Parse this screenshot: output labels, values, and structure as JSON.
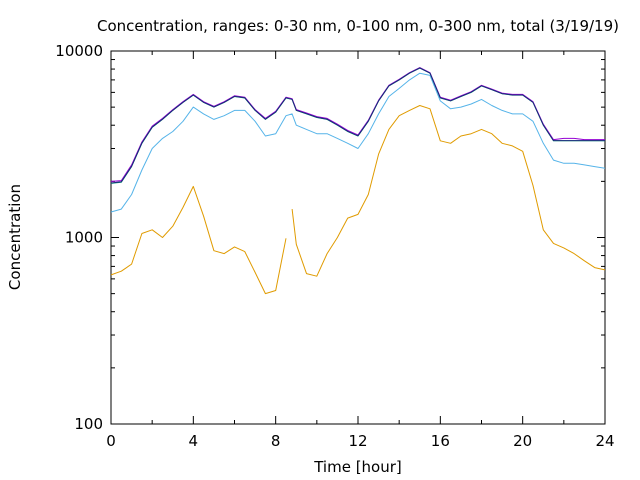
{
  "chart_data": {
    "type": "line",
    "title": "Concentration, ranges: 0-30 nm, 0-100 nm, 0-300 nm, total (3/19/19)",
    "xlabel": "Time [hour]",
    "ylabel": "Concentration",
    "xlim": [
      0,
      24
    ],
    "ylim": [
      100,
      10000
    ],
    "yscale": "log",
    "xticks": [
      0,
      4,
      8,
      12,
      16,
      20,
      24
    ],
    "xtick_labels": [
      "0",
      "4",
      "8",
      "12",
      "16",
      "20",
      "24"
    ],
    "yticks": [
      100,
      1000,
      10000
    ],
    "ytick_labels": [
      "100",
      "1000",
      "10000"
    ],
    "grid": false,
    "series": [
      {
        "color": "#e09b00",
        "gaps_after_x": [
          8.5
        ],
        "x": [
          0,
          0.5,
          1,
          1.5,
          2,
          2.5,
          3,
          3.5,
          4,
          4.5,
          5,
          5.5,
          6,
          6.5,
          7,
          7.5,
          8,
          8.5,
          8.8,
          9,
          9.5,
          10,
          10.5,
          11,
          11.5,
          12,
          12.5,
          13,
          13.5,
          14,
          14.5,
          15,
          15.5,
          16,
          16.5,
          17,
          17.5,
          18,
          18.5,
          19,
          19.5,
          20,
          20.5,
          21,
          21.5,
          22,
          22.5,
          23,
          23.5,
          24
        ],
        "y": [
          630,
          660,
          720,
          1050,
          1100,
          1000,
          1150,
          1450,
          1880,
          1300,
          850,
          820,
          890,
          840,
          650,
          500,
          520,
          990,
          1420,
          920,
          640,
          620,
          820,
          1000,
          1270,
          1330,
          1700,
          2800,
          3800,
          4500,
          4800,
          5100,
          4900,
          3300,
          3200,
          3500,
          3600,
          3800,
          3600,
          3200,
          3100,
          2900,
          1900,
          1100,
          930,
          880,
          820,
          750,
          690,
          670
        ]
      },
      {
        "color": "#56b4e9",
        "gaps_after_x": [],
        "x": [
          0,
          0.5,
          1,
          1.5,
          2,
          2.5,
          3,
          3.5,
          4,
          4.5,
          5,
          5.5,
          6,
          6.5,
          7,
          7.5,
          8,
          8.5,
          8.8,
          9,
          9.5,
          10,
          10.5,
          11,
          11.5,
          12,
          12.5,
          13,
          13.5,
          14,
          14.5,
          15,
          15.5,
          16,
          16.5,
          17,
          17.5,
          18,
          18.5,
          19,
          19.5,
          20,
          20.5,
          21,
          21.5,
          22,
          22.5,
          23,
          23.5,
          24
        ],
        "y": [
          1370,
          1420,
          1700,
          2300,
          3000,
          3400,
          3700,
          4200,
          5000,
          4600,
          4300,
          4500,
          4800,
          4800,
          4200,
          3500,
          3600,
          4500,
          4600,
          4000,
          3800,
          3600,
          3600,
          3400,
          3200,
          3000,
          3600,
          4600,
          5700,
          6300,
          7000,
          7600,
          7400,
          5400,
          4900,
          5000,
          5200,
          5500,
          5100,
          4800,
          4600,
          4600,
          4200,
          3200,
          2600,
          2500,
          2500,
          2450,
          2400,
          2350
        ]
      },
      {
        "color": "#009e73",
        "gaps_after_x": [],
        "x": [
          0,
          0.5,
          1,
          1.5,
          2,
          2.5,
          3,
          3.5,
          4,
          4.5,
          5,
          5.5,
          6,
          6.5,
          7,
          7.5,
          8,
          8.5,
          8.8,
          9,
          9.5,
          10,
          10.5,
          11,
          11.5,
          12,
          12.5,
          13,
          13.5,
          14,
          14.5,
          15,
          15.5,
          16,
          16.5,
          17,
          17.5,
          18,
          18.5,
          19,
          19.5,
          20,
          20.5,
          21,
          21.5,
          22,
          22.5,
          23,
          23.5,
          24
        ],
        "y": [
          1950,
          1980,
          2400,
          3200,
          3900,
          4300,
          4800,
          5300,
          5800,
          5300,
          5000,
          5300,
          5700,
          5600,
          4800,
          4300,
          4700,
          5600,
          5500,
          4800,
          4600,
          4400,
          4300,
          4000,
          3700,
          3500,
          4200,
          5400,
          6500,
          7000,
          7600,
          8100,
          7600,
          5600,
          5400,
          5700,
          6000,
          6500,
          6200,
          5900,
          5800,
          5800,
          5300,
          4000,
          3300,
          3300,
          3300,
          3300,
          3300,
          3300
        ]
      },
      {
        "color": "#9400d3",
        "gaps_after_x": [],
        "x": [
          0,
          0.5,
          1,
          1.5,
          2,
          2.5,
          3,
          3.5,
          4,
          4.5,
          5,
          5.5,
          6,
          6.5,
          7,
          7.5,
          8,
          8.5,
          8.8,
          9,
          9.5,
          10,
          10.5,
          11,
          11.5,
          12,
          12.5,
          13,
          13.5,
          14,
          14.5,
          15,
          15.5,
          16,
          16.5,
          17,
          17.5,
          18,
          18.5,
          19,
          19.5,
          20,
          20.5,
          21,
          21.5,
          22,
          22.5,
          23,
          23.5,
          24
        ],
        "y": [
          2000,
          2020,
          2450,
          3250,
          3950,
          4350,
          4850,
          5350,
          5850,
          5350,
          5050,
          5350,
          5750,
          5650,
          4850,
          4350,
          4750,
          5650,
          5550,
          4850,
          4650,
          4450,
          4350,
          4050,
          3750,
          3550,
          4250,
          5450,
          6550,
          7050,
          7650,
          8150,
          7650,
          5650,
          5450,
          5750,
          6050,
          6550,
          6250,
          5950,
          5850,
          5850,
          5350,
          4050,
          3350,
          3400,
          3400,
          3350,
          3350,
          3350
        ]
      },
      {
        "color": "#1a2a7a",
        "gaps_after_x": [],
        "x": [
          0,
          0.5,
          1,
          1.5,
          2,
          2.5,
          3,
          3.5,
          4,
          4.5,
          5,
          5.5,
          6,
          6.5,
          7,
          7.5,
          8,
          8.5,
          8.8,
          9,
          9.5,
          10,
          10.5,
          11,
          11.5,
          12,
          12.5,
          13,
          13.5,
          14,
          14.5,
          15,
          15.5,
          16,
          16.5,
          17,
          17.5,
          18,
          18.5,
          19,
          19.5,
          20,
          20.5,
          21,
          21.5,
          22,
          22.5,
          23,
          23.5,
          24
        ],
        "y": [
          1960,
          1990,
          2410,
          3210,
          3910,
          4310,
          4810,
          5310,
          5810,
          5310,
          5010,
          5310,
          5710,
          5610,
          4810,
          4310,
          4710,
          5610,
          5510,
          4810,
          4610,
          4410,
          4310,
          4010,
          3710,
          3510,
          4210,
          5410,
          6510,
          7010,
          7610,
          8110,
          7610,
          5610,
          5410,
          5710,
          6010,
          6510,
          6210,
          5910,
          5810,
          5810,
          5310,
          4010,
          3310,
          3310,
          3310,
          3310,
          3310,
          3310
        ]
      }
    ]
  }
}
